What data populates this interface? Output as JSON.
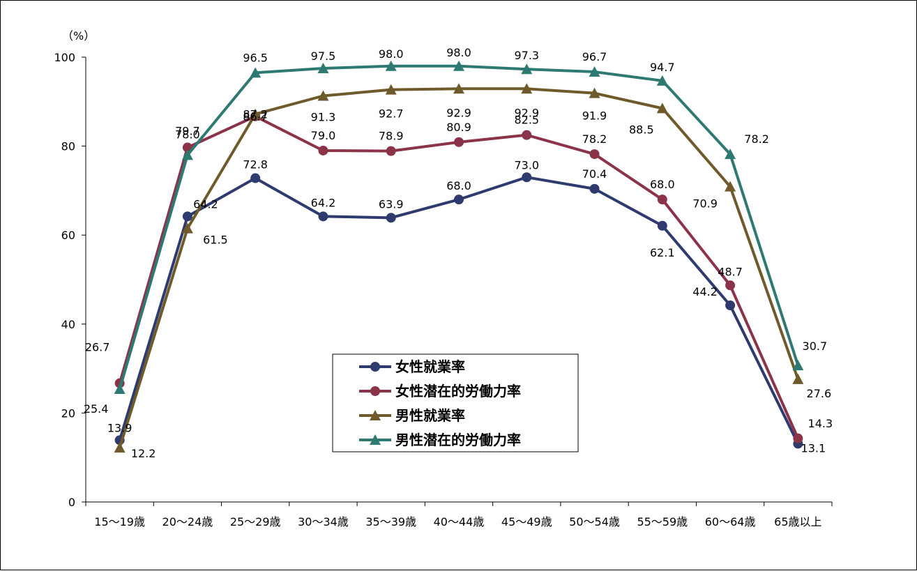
{
  "chart_data": {
    "type": "line",
    "ylabel": "（%）",
    "ylim": [
      0,
      100
    ],
    "yticks": [
      0,
      20,
      40,
      60,
      80,
      100
    ],
    "categories": [
      "15～19歳",
      "20～24歳",
      "25～29歳",
      "30～34歳",
      "35～39歳",
      "40～44歳",
      "45～49歳",
      "50～54歳",
      "55～59歳",
      "60～64歳",
      "65歳以上"
    ],
    "grid": false,
    "legend_placement": "center-bottom",
    "series": [
      {
        "name": "女性就業率",
        "marker": "circle",
        "color": "#2f3a6e",
        "values": [
          13.9,
          64.2,
          72.8,
          64.2,
          63.9,
          68.0,
          73.0,
          70.4,
          62.1,
          44.2,
          13.1
        ]
      },
      {
        "name": "女性潜在的労働力率",
        "marker": "circle",
        "color": "#8b3348",
        "values": [
          26.7,
          79.7,
          86.7,
          79.0,
          78.9,
          80.9,
          82.5,
          78.2,
          68.0,
          48.7,
          14.3
        ]
      },
      {
        "name": "男性就業率",
        "marker": "triangle",
        "color": "#6e5a2a",
        "values": [
          12.2,
          61.5,
          87.2,
          91.3,
          92.7,
          92.9,
          92.9,
          91.9,
          88.5,
          70.9,
          27.6
        ]
      },
      {
        "name": "男性潜在的労働力率",
        "marker": "triangle",
        "color": "#2e7a72",
        "values": [
          25.4,
          78.0,
          96.5,
          97.5,
          98.0,
          98.0,
          97.3,
          96.7,
          94.7,
          78.2,
          30.7
        ]
      }
    ],
    "value_labels": [
      [
        "13.9",
        "64.2",
        "72.8",
        "64.2",
        "63.9",
        "68.0",
        "73.0",
        "70.4",
        "62.1",
        "44.2",
        "13.1"
      ],
      [
        "26.7",
        "79.7",
        "86.7",
        "79.0",
        "78.9",
        "80.9",
        "82.5",
        "78.2",
        "68.0",
        "48.7",
        "14.3"
      ],
      [
        "12.2",
        "61.5",
        "87.2",
        "91.3",
        "92.7",
        "92.9",
        "92.9",
        "91.9",
        "88.5",
        "70.9",
        "27.6"
      ],
      [
        "25.4",
        "78.0",
        "96.5",
        "97.5",
        "98.0",
        "98.0",
        "97.3",
        "96.7",
        "94.7",
        "78.2",
        "30.7"
      ]
    ]
  }
}
